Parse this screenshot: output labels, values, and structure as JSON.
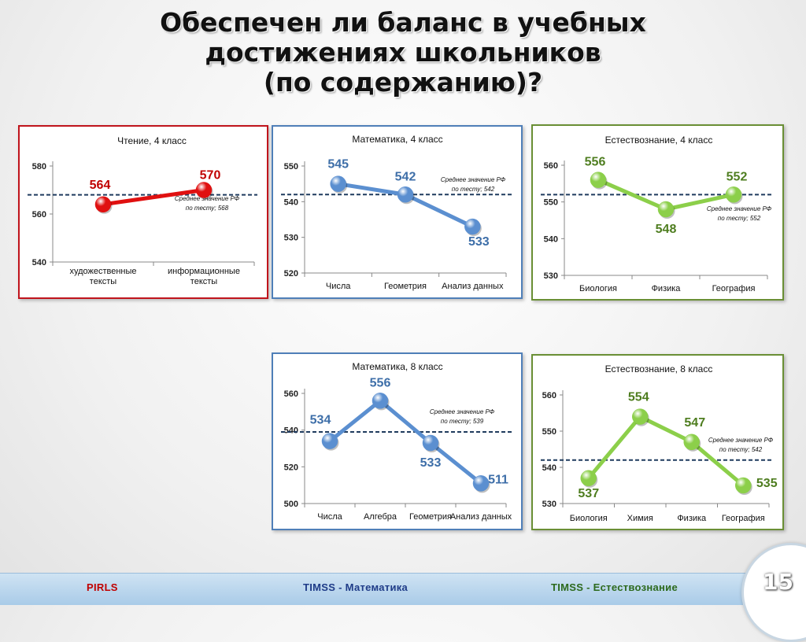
{
  "title": {
    "line1": "Обеспечен ли баланс в учебных",
    "line2": "достижениях школьников",
    "line3": "(по содержанию)?"
  },
  "footer": {
    "pirls": "PIRLS",
    "timss_math": "TIMSS - Математика",
    "timss_sci": "TIMSS - Естествознание",
    "page": "15"
  },
  "colors": {
    "red": "#e01010",
    "blue": "#5b8fd0",
    "green": "#8ccf4a",
    "red_border": "#c0141c",
    "blue_border": "#4f7fb8",
    "green_border": "#6a8f35",
    "label_red": "#c00000",
    "label_blue": "#3d6ea8",
    "label_green": "#4e7d1f",
    "avg_line": "#1f3b5e"
  },
  "chart_data": [
    {
      "type": "line",
      "title": "Чтение, 4 класс",
      "categories": [
        [
          "художественные",
          "тексты"
        ],
        [
          "информационные",
          "тексты"
        ]
      ],
      "values": [
        564,
        570
      ],
      "ylim": [
        540,
        580
      ],
      "yticks": [
        540,
        560,
        580
      ],
      "average": 568,
      "average_label": [
        "Среднее значение РФ",
        "по тесту; 568"
      ],
      "color": "red"
    },
    {
      "type": "line",
      "title": "Математика, 4 класс",
      "categories": [
        "Числа",
        "Геометрия",
        "Анализ данных"
      ],
      "values": [
        545,
        542,
        533
      ],
      "ylim": [
        520,
        550
      ],
      "yticks": [
        520,
        530,
        540,
        550
      ],
      "average": 542,
      "average_label": [
        "Среднее значение РФ",
        "по тесту; 542"
      ],
      "color": "blue"
    },
    {
      "type": "line",
      "title": "Естествознание, 4 класс",
      "categories": [
        "Биология",
        "Физика",
        "География"
      ],
      "values": [
        556,
        548,
        552
      ],
      "ylim": [
        530,
        560
      ],
      "yticks": [
        530,
        540,
        550,
        560
      ],
      "average": 552,
      "average_label": [
        "Среднее значение РФ",
        "по тесту; 552"
      ],
      "color": "green"
    },
    {
      "type": "line",
      "title": "Математика, 8 класс",
      "categories": [
        "Числа",
        "Алгебра",
        "Геометрия",
        "Анализ данных"
      ],
      "values": [
        534,
        556,
        533,
        511
      ],
      "ylim": [
        500,
        560
      ],
      "yticks": [
        500,
        520,
        540,
        560
      ],
      "average": 539,
      "average_label": [
        "Среднее значение РФ",
        "по тесту; 539"
      ],
      "color": "blue"
    },
    {
      "type": "line",
      "title": "Естествознание, 8 класс",
      "categories": [
        "Биология",
        "Химия",
        "Физика",
        "География"
      ],
      "values": [
        537,
        554,
        547,
        535
      ],
      "ylim": [
        530,
        560
      ],
      "yticks": [
        530,
        540,
        550,
        560
      ],
      "average": 542,
      "average_label": [
        "Среднее значение РФ",
        "по тесту; 542"
      ],
      "color": "green"
    }
  ]
}
